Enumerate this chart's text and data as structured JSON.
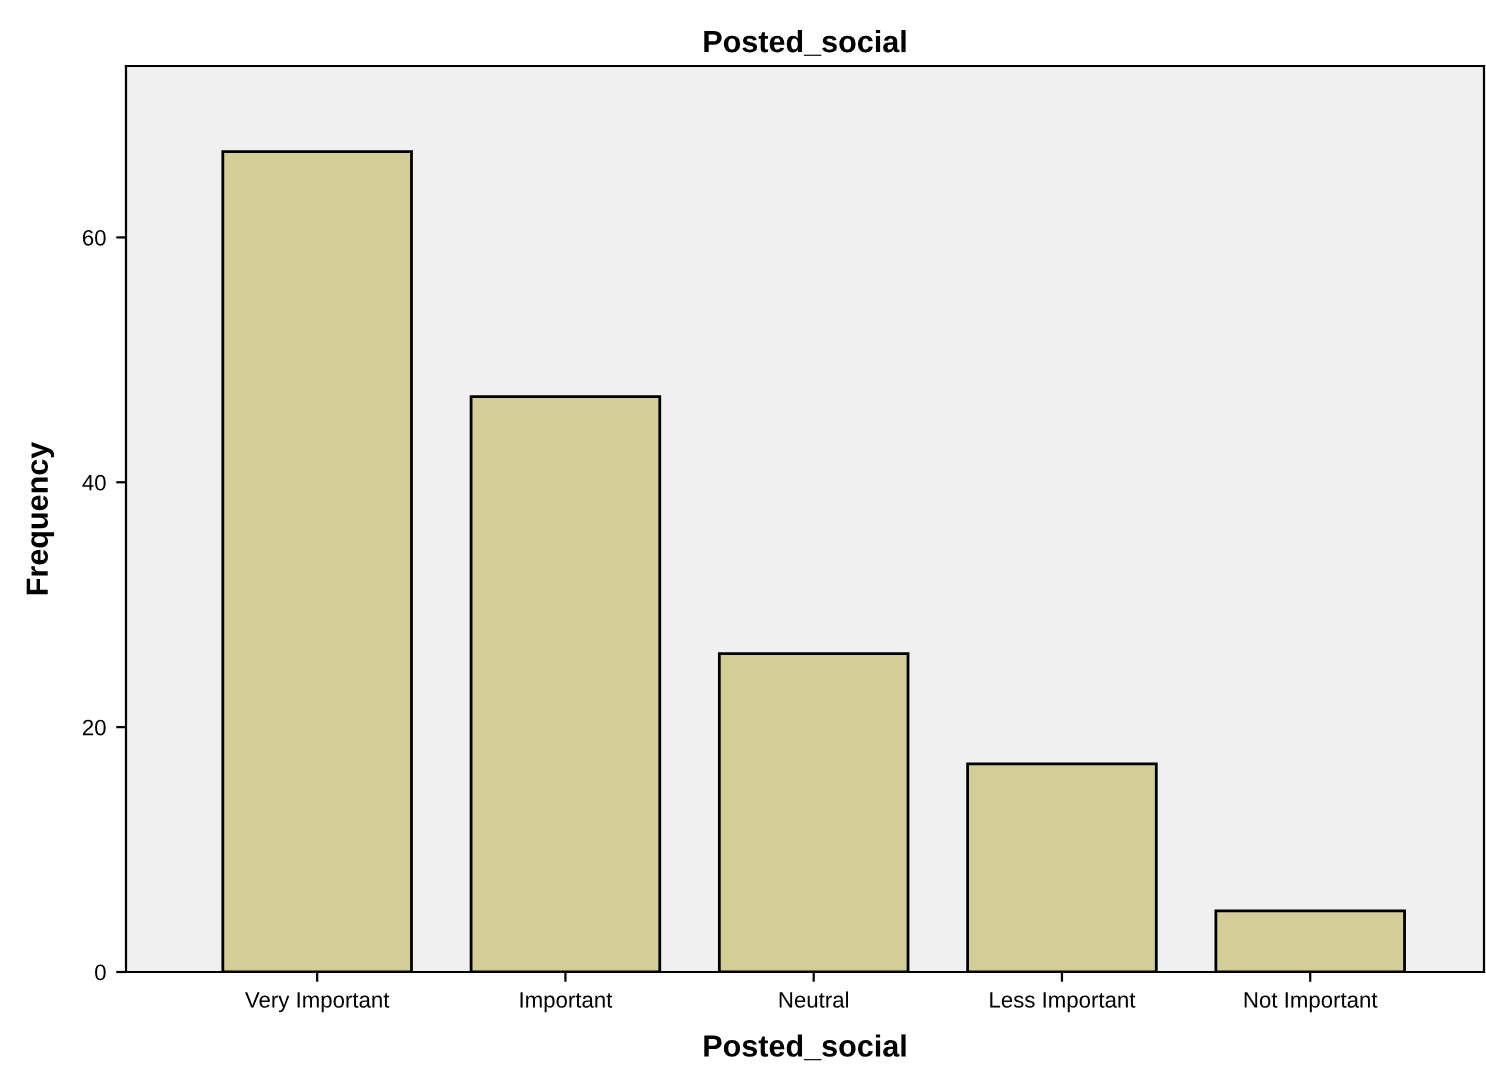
{
  "chart_data": {
    "type": "bar",
    "title": "Posted_social",
    "xlabel": "Posted_social",
    "ylabel": "Frequency",
    "categories": [
      "Very Important",
      "Important",
      "Neutral",
      "Less Important",
      "Not Important"
    ],
    "values": [
      67,
      47,
      26,
      17,
      5
    ],
    "color": "#d3ce97",
    "ylim": [
      0,
      74
    ],
    "yticks": [
      0,
      20,
      40,
      60
    ],
    "grid": false,
    "legend": false
  }
}
